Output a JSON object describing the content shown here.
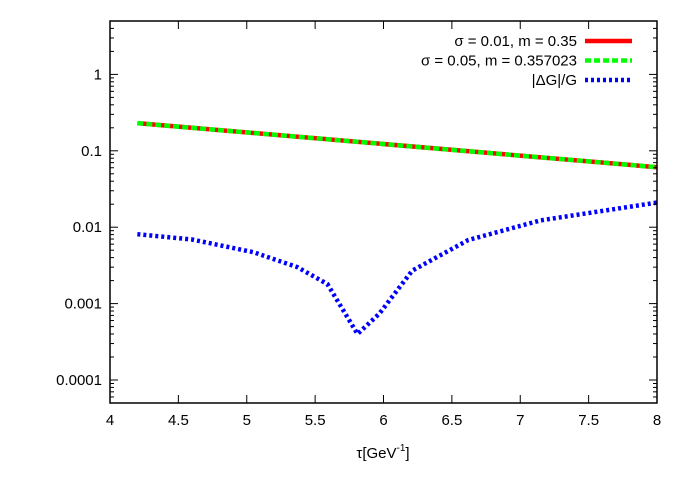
{
  "chart_data": {
    "type": "line",
    "title": "",
    "xlabel": "τ[GeV",
    "xlabel_sup": "-1",
    "xlabel_close": "]",
    "ylabel": "",
    "xlim": [
      4,
      8
    ],
    "ylim": [
      5e-05,
      5
    ],
    "yscale": "log",
    "grid": false,
    "legend_placement": "top-right",
    "xticks": [
      "4",
      "4.5",
      "5",
      "5.5",
      "6",
      "6.5",
      "7",
      "7.5",
      "8"
    ],
    "yticks": [
      "0.0001",
      "0.001",
      "0.01",
      "0.1",
      "1"
    ],
    "series": [
      {
        "name": "σ = 0.01, m = 0.35",
        "color": "#ff0000",
        "style": "solid",
        "x": [
          4.2,
          8
        ],
        "y": [
          0.23,
          0.061
        ]
      },
      {
        "name": "σ = 0.05, m = 0.357023",
        "color": "#00ff00",
        "style": "dashed",
        "x": [
          4.2,
          8
        ],
        "y": [
          0.23,
          0.061
        ]
      },
      {
        "name": "|ΔG|/G",
        "color": "#0000ff",
        "style": "dotted",
        "x": [
          4.2,
          4.6,
          5.05,
          5.37,
          5.59,
          5.81,
          5.97,
          6.21,
          6.62,
          7.15,
          8
        ],
        "y": [
          0.0081,
          0.0069,
          0.0047,
          0.003,
          0.0018,
          0.0004,
          0.00074,
          0.0027,
          0.0068,
          0.0123,
          0.021
        ]
      }
    ]
  }
}
